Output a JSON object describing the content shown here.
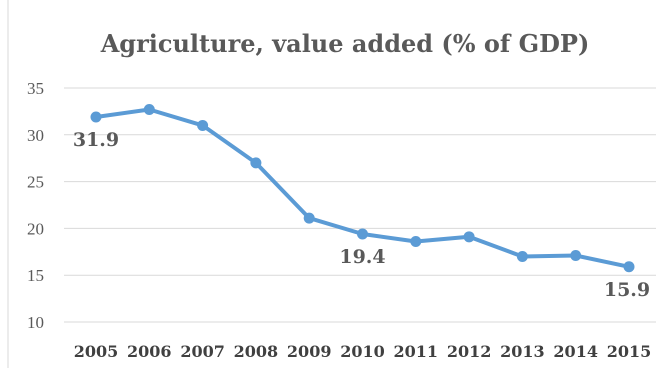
{
  "chart_data": {
    "type": "line",
    "title": "Agriculture, value added (% of GDP)",
    "xlabel": "",
    "ylabel": "",
    "categories": [
      "2005",
      "2006",
      "2007",
      "2008",
      "2009",
      "2010",
      "2011",
      "2012",
      "2013",
      "2014",
      "2015"
    ],
    "series": [
      {
        "values": [
          31.9,
          32.7,
          31.0,
          27.0,
          21.1,
          19.4,
          18.6,
          19.1,
          17.0,
          17.1,
          15.9
        ],
        "color": "#5b9bd5"
      }
    ],
    "data_labels": [
      {
        "index": 0,
        "text": "31.9"
      },
      {
        "index": 5,
        "text": "19.4"
      },
      {
        "index": 10,
        "text": "15.9"
      }
    ],
    "yticks": [
      "10",
      "15",
      "20",
      "25",
      "30",
      "35"
    ],
    "ylim": [
      10,
      35
    ],
    "grid": true,
    "legend": "none"
  }
}
